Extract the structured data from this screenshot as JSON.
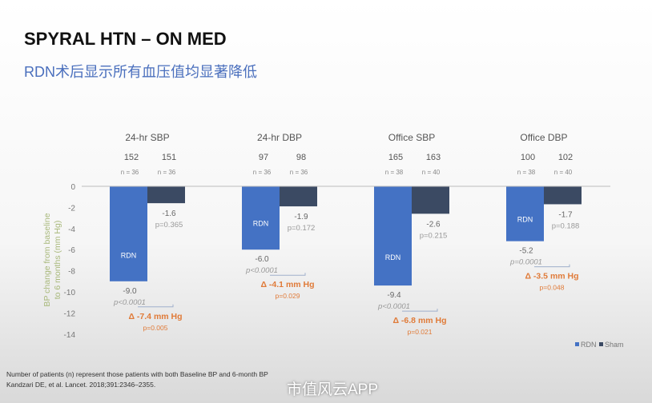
{
  "title": "SPYRAL HTN – ON MED",
  "subtitle": "RDN术后显示所有血压值均显著降低",
  "footnote_1": "Number of patients (n) represent those patients with both Baseline BP and 6-month BP",
  "footnote_2": "Kandzari DE, et al. Lancet. 2018;391:2346–2355.",
  "watermark": "市值风云APP",
  "chart_data": {
    "type": "bar",
    "ylabel": "BP change from baseline to 6 months (mm Hg)",
    "ylim": [
      -14,
      0
    ],
    "yticks": [
      0,
      -2,
      -4,
      -6,
      -8,
      -10,
      -12,
      -14
    ],
    "grid": false,
    "legend": {
      "position": "bottom-right",
      "entries": [
        "RDN",
        "Sham"
      ]
    },
    "colors": {
      "RDN": "#4472c4",
      "Sham": "#3b4a63",
      "delta": "#e07b39"
    },
    "categories": [
      "24-hr SBP",
      "24-hr DBP",
      "Office SBP",
      "Office DBP"
    ],
    "series": [
      {
        "name": "RDN",
        "values": [
          -9.0,
          -6.0,
          -9.4,
          -5.2
        ],
        "labels": [
          "-9.0",
          "-6.0",
          "-9.4",
          "-5.2"
        ],
        "p": [
          "p<0.0001",
          "p<0.0001",
          "p<0.0001",
          "p=0.0001"
        ],
        "baseline": [
          "152",
          "97",
          "165",
          "100"
        ],
        "n": [
          "n = 36",
          "n = 36",
          "n = 38",
          "n = 38"
        ],
        "bar_label": "RDN"
      },
      {
        "name": "Sham",
        "values": [
          -1.6,
          -1.9,
          -2.6,
          -1.7
        ],
        "labels": [
          "-1.6",
          "-1.9",
          "-2.6",
          "-1.7"
        ],
        "p": [
          "p=0.365",
          "p=0.172",
          "p=0.215",
          "p=0.188"
        ],
        "baseline": [
          "151",
          "98",
          "163",
          "102"
        ],
        "n": [
          "n = 36",
          "n = 36",
          "n = 40",
          "n = 40"
        ]
      }
    ],
    "deltas": [
      {
        "label": "Δ -7.4 mm Hg",
        "p": "p=0.005"
      },
      {
        "label": "Δ -4.1 mm Hg",
        "p": "p=0.029"
      },
      {
        "label": "Δ -6.8 mm Hg",
        "p": "p=0.021"
      },
      {
        "label": "Δ -3.5 mm Hg",
        "p": "p=0.048"
      }
    ]
  }
}
